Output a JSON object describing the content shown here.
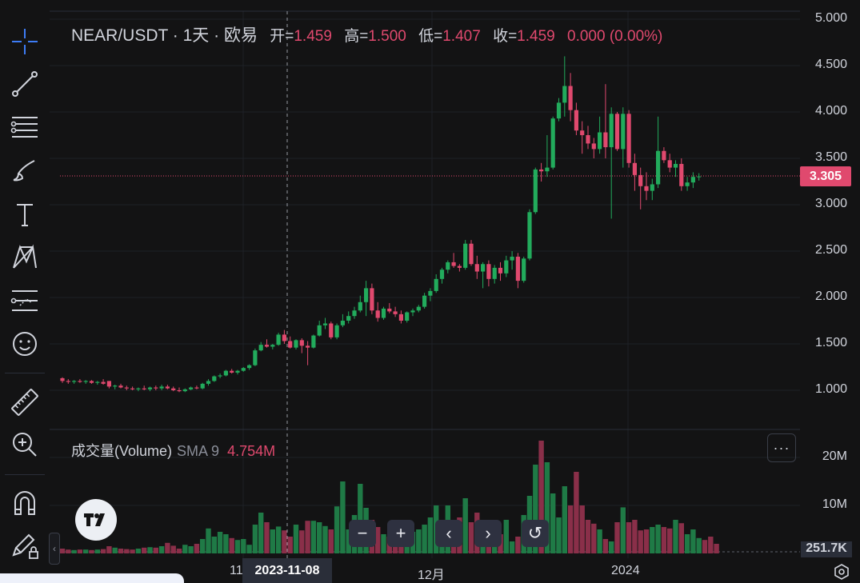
{
  "header": {
    "title": "NEAR/USDT · 1天 · 欧易",
    "open_label": "开=",
    "open": "1.459",
    "high_label": "高=",
    "high": "1.500",
    "low_label": "低=",
    "low": "1.407",
    "close_label": "收=",
    "close": "1.459",
    "change": "0.000 (0.00%)"
  },
  "volume_legend": {
    "name": "成交量(Volume)",
    "sma": "SMA 9",
    "value": "4.754M"
  },
  "more_button": "···",
  "price_axis": [
    "5.000",
    "4.500",
    "4.000",
    "3.500",
    "3.000",
    "2.500",
    "2.000",
    "1.500",
    "1.000"
  ],
  "volume_axis": [
    "20M",
    "10M"
  ],
  "current_price": "3.305",
  "volume_tag": "251.7K",
  "x_axis": {
    "labels": [
      "11",
      "12月",
      "2024"
    ],
    "crosshair_date": "2023-11-08"
  },
  "nav_buttons": [
    "−",
    "+",
    "‹",
    "›",
    "↺"
  ],
  "colors": {
    "up": "#22ab5c",
    "down": "#e0496e",
    "bg": "#131314",
    "grid": "#1e2026"
  },
  "toolbar_icons": [
    "crosshair-icon",
    "trend-line-icon",
    "horizontal-lines-icon",
    "brush-icon",
    "text-icon",
    "pattern-icon",
    "forecast-icon",
    "emoji-icon",
    "ruler-icon",
    "zoom-in-icon",
    "magnet-icon",
    "lock-drawing-icon"
  ],
  "chart_data": [
    {
      "type": "candlestick",
      "symbol": "NEAR/USDT",
      "interval": "1天",
      "exchange": "欧易",
      "ylim": [
        0.6,
        5.0
      ],
      "y_ticks": [
        1.0,
        1.5,
        2.0,
        2.5,
        3.0,
        3.5,
        4.0,
        4.5,
        5.0
      ],
      "x_labels": [
        "11",
        "12月",
        "2024"
      ],
      "candles": [
        {
          "o": 1.13,
          "h": 1.14,
          "l": 1.08,
          "c": 1.1
        },
        {
          "o": 1.1,
          "h": 1.12,
          "l": 1.07,
          "c": 1.09
        },
        {
          "o": 1.09,
          "h": 1.11,
          "l": 1.07,
          "c": 1.1
        },
        {
          "o": 1.1,
          "h": 1.12,
          "l": 1.08,
          "c": 1.09
        },
        {
          "o": 1.09,
          "h": 1.11,
          "l": 1.07,
          "c": 1.1
        },
        {
          "o": 1.1,
          "h": 1.11,
          "l": 1.07,
          "c": 1.08
        },
        {
          "o": 1.08,
          "h": 1.1,
          "l": 1.06,
          "c": 1.09
        },
        {
          "o": 1.09,
          "h": 1.12,
          "l": 1.06,
          "c": 1.07
        },
        {
          "o": 1.1,
          "h": 1.1,
          "l": 1.02,
          "c": 1.04
        },
        {
          "o": 1.04,
          "h": 1.06,
          "l": 1.01,
          "c": 1.05
        },
        {
          "o": 1.05,
          "h": 1.07,
          "l": 1.02,
          "c": 1.03
        },
        {
          "o": 1.03,
          "h": 1.05,
          "l": 1.0,
          "c": 1.02
        },
        {
          "o": 1.02,
          "h": 1.04,
          "l": 1.0,
          "c": 1.01
        },
        {
          "o": 1.01,
          "h": 1.03,
          "l": 0.99,
          "c": 1.02
        },
        {
          "o": 1.02,
          "h": 1.05,
          "l": 1.0,
          "c": 1.01
        },
        {
          "o": 1.01,
          "h": 1.04,
          "l": 0.99,
          "c": 1.03
        },
        {
          "o": 1.03,
          "h": 1.05,
          "l": 1.0,
          "c": 1.02
        },
        {
          "o": 1.02,
          "h": 1.06,
          "l": 1.0,
          "c": 1.04
        },
        {
          "o": 1.04,
          "h": 1.06,
          "l": 1.01,
          "c": 1.02
        },
        {
          "o": 1.02,
          "h": 1.04,
          "l": 0.99,
          "c": 1.0
        },
        {
          "o": 1.0,
          "h": 1.03,
          "l": 0.98,
          "c": 0.99
        },
        {
          "o": 0.99,
          "h": 1.02,
          "l": 0.98,
          "c": 1.01
        },
        {
          "o": 1.01,
          "h": 1.04,
          "l": 1.0,
          "c": 1.03
        },
        {
          "o": 1.03,
          "h": 1.05,
          "l": 1.01,
          "c": 1.02
        },
        {
          "o": 1.02,
          "h": 1.08,
          "l": 1.01,
          "c": 1.07
        },
        {
          "o": 1.07,
          "h": 1.12,
          "l": 1.05,
          "c": 1.1
        },
        {
          "o": 1.1,
          "h": 1.16,
          "l": 1.09,
          "c": 1.15
        },
        {
          "o": 1.15,
          "h": 1.18,
          "l": 1.13,
          "c": 1.16
        },
        {
          "o": 1.16,
          "h": 1.22,
          "l": 1.15,
          "c": 1.21
        },
        {
          "o": 1.21,
          "h": 1.23,
          "l": 1.18,
          "c": 1.19
        },
        {
          "o": 1.19,
          "h": 1.22,
          "l": 1.17,
          "c": 1.21
        },
        {
          "o": 1.21,
          "h": 1.25,
          "l": 1.2,
          "c": 1.24
        },
        {
          "o": 1.24,
          "h": 1.28,
          "l": 1.22,
          "c": 1.27
        },
        {
          "o": 1.27,
          "h": 1.45,
          "l": 1.26,
          "c": 1.43
        },
        {
          "o": 1.43,
          "h": 1.52,
          "l": 1.42,
          "c": 1.49
        },
        {
          "o": 1.49,
          "h": 1.55,
          "l": 1.46,
          "c": 1.47
        },
        {
          "o": 1.47,
          "h": 1.5,
          "l": 1.44,
          "c": 1.49
        },
        {
          "o": 1.49,
          "h": 1.62,
          "l": 1.48,
          "c": 1.6
        },
        {
          "o": 1.6,
          "h": 1.65,
          "l": 1.5,
          "c": 1.53
        },
        {
          "o": 1.53,
          "h": 1.58,
          "l": 1.45,
          "c": 1.46
        },
        {
          "o": 1.46,
          "h": 1.55,
          "l": 1.44,
          "c": 1.54
        },
        {
          "o": 1.54,
          "h": 1.56,
          "l": 1.4,
          "c": 1.48
        },
        {
          "o": 1.48,
          "h": 1.53,
          "l": 1.27,
          "c": 1.46
        },
        {
          "o": 1.46,
          "h": 1.6,
          "l": 1.45,
          "c": 1.59
        },
        {
          "o": 1.59,
          "h": 1.75,
          "l": 1.58,
          "c": 1.7
        },
        {
          "o": 1.7,
          "h": 1.78,
          "l": 1.66,
          "c": 1.72
        },
        {
          "o": 1.72,
          "h": 1.74,
          "l": 1.55,
          "c": 1.57
        },
        {
          "o": 1.57,
          "h": 1.72,
          "l": 1.55,
          "c": 1.7
        },
        {
          "o": 1.7,
          "h": 1.82,
          "l": 1.68,
          "c": 1.75
        },
        {
          "o": 1.75,
          "h": 1.85,
          "l": 1.72,
          "c": 1.8
        },
        {
          "o": 1.8,
          "h": 1.9,
          "l": 1.77,
          "c": 1.86
        },
        {
          "o": 1.86,
          "h": 2.02,
          "l": 1.84,
          "c": 1.95
        },
        {
          "o": 1.95,
          "h": 2.18,
          "l": 1.8,
          "c": 2.1
        },
        {
          "o": 2.1,
          "h": 2.15,
          "l": 1.82,
          "c": 1.86
        },
        {
          "o": 1.86,
          "h": 1.95,
          "l": 1.74,
          "c": 1.78
        },
        {
          "o": 1.78,
          "h": 1.9,
          "l": 1.76,
          "c": 1.88
        },
        {
          "o": 1.88,
          "h": 1.94,
          "l": 1.83,
          "c": 1.85
        },
        {
          "o": 1.85,
          "h": 1.9,
          "l": 1.79,
          "c": 1.82
        },
        {
          "o": 1.82,
          "h": 1.86,
          "l": 1.72,
          "c": 1.75
        },
        {
          "o": 1.75,
          "h": 1.85,
          "l": 1.73,
          "c": 1.84
        },
        {
          "o": 1.84,
          "h": 1.88,
          "l": 1.8,
          "c": 1.86
        },
        {
          "o": 1.86,
          "h": 1.92,
          "l": 1.84,
          "c": 1.9
        },
        {
          "o": 1.9,
          "h": 2.05,
          "l": 1.88,
          "c": 2.02
        },
        {
          "o": 2.02,
          "h": 2.1,
          "l": 1.96,
          "c": 2.07
        },
        {
          "o": 2.07,
          "h": 2.25,
          "l": 2.05,
          "c": 2.2
        },
        {
          "o": 2.2,
          "h": 2.32,
          "l": 2.15,
          "c": 2.3
        },
        {
          "o": 2.3,
          "h": 2.4,
          "l": 2.26,
          "c": 2.38
        },
        {
          "o": 2.38,
          "h": 2.48,
          "l": 2.32,
          "c": 2.34
        },
        {
          "o": 2.34,
          "h": 2.36,
          "l": 2.28,
          "c": 2.32
        },
        {
          "o": 2.32,
          "h": 2.62,
          "l": 2.3,
          "c": 2.58
        },
        {
          "o": 2.58,
          "h": 2.62,
          "l": 2.34,
          "c": 2.36
        },
        {
          "o": 2.36,
          "h": 2.45,
          "l": 2.2,
          "c": 2.28
        },
        {
          "o": 2.28,
          "h": 2.38,
          "l": 2.1,
          "c": 2.36
        },
        {
          "o": 2.36,
          "h": 2.4,
          "l": 2.12,
          "c": 2.2
        },
        {
          "o": 2.2,
          "h": 2.35,
          "l": 2.15,
          "c": 2.32
        },
        {
          "o": 2.32,
          "h": 2.38,
          "l": 2.18,
          "c": 2.26
        },
        {
          "o": 2.26,
          "h": 2.45,
          "l": 2.22,
          "c": 2.4
        },
        {
          "o": 2.4,
          "h": 2.5,
          "l": 2.3,
          "c": 2.44
        },
        {
          "o": 2.44,
          "h": 2.48,
          "l": 2.1,
          "c": 2.18
        },
        {
          "o": 2.18,
          "h": 2.44,
          "l": 2.16,
          "c": 2.42
        },
        {
          "o": 2.42,
          "h": 2.95,
          "l": 2.4,
          "c": 2.92
        },
        {
          "o": 2.92,
          "h": 3.4,
          "l": 2.9,
          "c": 3.38
        },
        {
          "o": 3.38,
          "h": 3.45,
          "l": 3.25,
          "c": 3.36
        },
        {
          "o": 3.36,
          "h": 3.75,
          "l": 3.3,
          "c": 3.4
        },
        {
          "o": 3.4,
          "h": 3.95,
          "l": 3.38,
          "c": 3.93
        },
        {
          "o": 3.93,
          "h": 4.15,
          "l": 3.9,
          "c": 4.1
        },
        {
          "o": 4.1,
          "h": 4.6,
          "l": 3.95,
          "c": 4.28
        },
        {
          "o": 4.28,
          "h": 4.42,
          "l": 3.9,
          "c": 4.02
        },
        {
          "o": 4.02,
          "h": 4.1,
          "l": 3.75,
          "c": 3.8
        },
        {
          "o": 3.8,
          "h": 3.9,
          "l": 3.55,
          "c": 3.75
        },
        {
          "o": 3.75,
          "h": 3.85,
          "l": 3.6,
          "c": 3.66
        },
        {
          "o": 3.66,
          "h": 3.72,
          "l": 3.5,
          "c": 3.6
        },
        {
          "o": 3.6,
          "h": 3.95,
          "l": 3.55,
          "c": 3.78
        },
        {
          "o": 3.78,
          "h": 4.3,
          "l": 3.5,
          "c": 3.62
        },
        {
          "o": 3.62,
          "h": 4.05,
          "l": 2.85,
          "c": 3.98
        },
        {
          "o": 3.98,
          "h": 4.0,
          "l": 3.58,
          "c": 3.6
        },
        {
          "o": 3.6,
          "h": 4.05,
          "l": 3.4,
          "c": 3.98
        },
        {
          "o": 3.98,
          "h": 4.02,
          "l": 3.4,
          "c": 3.45
        },
        {
          "o": 3.45,
          "h": 3.55,
          "l": 3.15,
          "c": 3.32
        },
        {
          "o": 3.32,
          "h": 3.4,
          "l": 2.95,
          "c": 3.2
        },
        {
          "o": 3.2,
          "h": 3.35,
          "l": 3.05,
          "c": 3.15
        },
        {
          "o": 3.15,
          "h": 3.28,
          "l": 3.05,
          "c": 3.22
        },
        {
          "o": 3.22,
          "h": 3.95,
          "l": 3.18,
          "c": 3.58
        },
        {
          "o": 3.58,
          "h": 3.62,
          "l": 3.45,
          "c": 3.48
        },
        {
          "o": 3.48,
          "h": 3.55,
          "l": 3.35,
          "c": 3.4
        },
        {
          "o": 3.4,
          "h": 3.48,
          "l": 3.3,
          "c": 3.44
        },
        {
          "o": 3.44,
          "h": 3.5,
          "l": 3.15,
          "c": 3.2
        },
        {
          "o": 3.2,
          "h": 3.3,
          "l": 3.15,
          "c": 3.24
        },
        {
          "o": 3.24,
          "h": 3.35,
          "l": 3.18,
          "c": 3.3
        },
        {
          "o": 3.3,
          "h": 3.34,
          "l": 3.26,
          "c": 3.305
        }
      ]
    },
    {
      "type": "bar",
      "title": "成交量(Volume)",
      "ylim": [
        0,
        24
      ],
      "y_ticks": [
        "10M",
        "20M"
      ],
      "values_millions": [
        1.0,
        0.8,
        0.7,
        0.8,
        0.8,
        0.7,
        0.8,
        0.9,
        1.5,
        1.2,
        1.0,
        0.9,
        0.8,
        1.0,
        1.2,
        1.3,
        1.2,
        1.5,
        2.2,
        1.6,
        1.0,
        1.8,
        1.5,
        2.0,
        3.0,
        5.2,
        3.5,
        4.5,
        4.0,
        3.2,
        2.8,
        3.0,
        1.8,
        6.0,
        8.5,
        6.5,
        5.0,
        5.6,
        4.8,
        3.5,
        6.0,
        4.8,
        6.8,
        6.8,
        6.5,
        5.7,
        5.0,
        9.8,
        15.0,
        5.0,
        8.0,
        14.5,
        9.5,
        7.0,
        5.5,
        4.0,
        3.5,
        3.2,
        3.0,
        5.0,
        4.5,
        5.0,
        6.0,
        7.5,
        10.0,
        6.8,
        10.0,
        6.5,
        7.5,
        11.5,
        6.5,
        8.5,
        3.8,
        2.8,
        4.0,
        4.0,
        7.0,
        2.5,
        3.5,
        8.0,
        12.0,
        18.5,
        23.5,
        19.0,
        12.5,
        7.5,
        14.0,
        10.0,
        17.0,
        10.0,
        7.0,
        6.2,
        5.0,
        3.0,
        2.5,
        6.5,
        9.6,
        6.5,
        7.0,
        4.8,
        5.0,
        5.5,
        6.0,
        5.5,
        5.2,
        7.0,
        6.3,
        4.0,
        5.0,
        3.2,
        2.8,
        3.5,
        2.0
      ]
    }
  ]
}
